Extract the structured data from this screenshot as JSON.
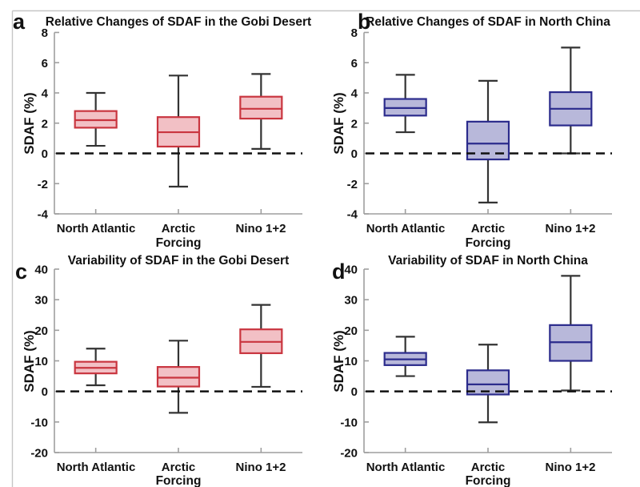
{
  "figure": {
    "background": "#ffffff"
  },
  "style": {
    "frame_color": "#c6c6c6",
    "axis_color": "#9e9e9e",
    "text_color": "#111111",
    "whisker_color": "#333333",
    "zero_line_color": "#111111",
    "red_edge": "#c9353f",
    "red_fill": "#f2c0c5",
    "blue_edge": "#2b2b8c",
    "blue_fill": "#b8b8da"
  },
  "chart_data": [
    {
      "type": "box",
      "panel_label": "a",
      "title": "Relative Changes of SDAF in the Gobi Desert",
      "xlabel": "Forcing",
      "ylabel": "SDAF (%)",
      "ylim": [
        -4,
        8
      ],
      "yticks": [
        8,
        6,
        4,
        2,
        0,
        -2,
        -4
      ],
      "grid": false,
      "legend": "none",
      "zero_line": {
        "y": 0,
        "style": "dashed",
        "color": "#111111"
      },
      "box_edge": "#c9353f",
      "box_fill": "#f2c0c5",
      "categories": [
        "North Atlantic",
        "Arctic",
        "Nino 1+2"
      ],
      "boxes": [
        {
          "category": "North Atlantic",
          "whisker_low": 0.5,
          "q1": 1.7,
          "median": 2.2,
          "q3": 2.8,
          "whisker_high": 4.0
        },
        {
          "category": "Arctic",
          "whisker_low": -2.2,
          "q1": 0.45,
          "median": 1.4,
          "q3": 2.4,
          "whisker_high": 5.15
        },
        {
          "category": "Nino 1+2",
          "whisker_low": 0.3,
          "q1": 2.3,
          "median": 2.95,
          "q3": 3.75,
          "whisker_high": 5.25
        }
      ]
    },
    {
      "type": "box",
      "panel_label": "b",
      "title": "Relative Changes of SDAF in North China",
      "xlabel": "Forcing",
      "ylabel": "SDAF (%)",
      "ylim": [
        -4,
        8
      ],
      "yticks": [
        8,
        6,
        4,
        2,
        0,
        -2,
        -4
      ],
      "grid": false,
      "legend": "none",
      "zero_line": {
        "y": 0,
        "style": "dashed",
        "color": "#111111"
      },
      "box_edge": "#2b2b8c",
      "box_fill": "#b8b8da",
      "categories": [
        "North Atlantic",
        "Arctic",
        "Nino 1+2"
      ],
      "boxes": [
        {
          "category": "North Atlantic",
          "whisker_low": 1.4,
          "q1": 2.5,
          "median": 3.0,
          "q3": 3.6,
          "whisker_high": 5.2
        },
        {
          "category": "Arctic",
          "whisker_low": -3.25,
          "q1": -0.4,
          "median": 0.65,
          "q3": 2.1,
          "whisker_high": 4.8
        },
        {
          "category": "Nino 1+2",
          "whisker_low": 0.0,
          "q1": 1.85,
          "median": 2.95,
          "q3": 4.05,
          "whisker_high": 7.0
        }
      ]
    },
    {
      "type": "box",
      "panel_label": "c",
      "title": "Variability of SDAF in the Gobi Desert",
      "xlabel": "Forcing",
      "ylabel": "SDAF (%)",
      "ylim": [
        -20,
        40
      ],
      "yticks": [
        40,
        30,
        20,
        10,
        0,
        -10,
        -20
      ],
      "grid": false,
      "legend": "none",
      "zero_line": {
        "y": 0,
        "style": "dashed",
        "color": "#111111"
      },
      "box_edge": "#c9353f",
      "box_fill": "#f2c0c5",
      "categories": [
        "North Atlantic",
        "Arctic",
        "Nino 1+2"
      ],
      "boxes": [
        {
          "category": "North Atlantic",
          "whisker_low": 2.0,
          "q1": 5.9,
          "median": 7.7,
          "q3": 9.7,
          "whisker_high": 14.0
        },
        {
          "category": "Arctic",
          "whisker_low": -7.0,
          "q1": 1.6,
          "median": 4.5,
          "q3": 8.0,
          "whisker_high": 16.6
        },
        {
          "category": "Nino 1+2",
          "whisker_low": 1.5,
          "q1": 12.5,
          "median": 16.2,
          "q3": 20.3,
          "whisker_high": 28.3
        }
      ]
    },
    {
      "type": "box",
      "panel_label": "d",
      "title": "Variability of SDAF in North China",
      "xlabel": "Forcing",
      "ylabel": "SDAF (%)",
      "ylim": [
        -20,
        40
      ],
      "yticks": [
        40,
        30,
        20,
        10,
        0,
        -10,
        -20
      ],
      "grid": false,
      "legend": "none",
      "zero_line": {
        "y": 0,
        "style": "dashed",
        "color": "#111111"
      },
      "box_edge": "#2b2b8c",
      "box_fill": "#b8b8da",
      "categories": [
        "North Atlantic",
        "Arctic",
        "Nino 1+2"
      ],
      "boxes": [
        {
          "category": "North Atlantic",
          "whisker_low": 5.0,
          "q1": 8.6,
          "median": 10.5,
          "q3": 12.6,
          "whisker_high": 17.9
        },
        {
          "category": "Arctic",
          "whisker_low": -10.1,
          "q1": -1.0,
          "median": 2.3,
          "q3": 6.9,
          "whisker_high": 15.3
        },
        {
          "category": "Nino 1+2",
          "whisker_low": 0.3,
          "q1": 10.0,
          "median": 16.1,
          "q3": 21.7,
          "whisker_high": 37.8
        }
      ]
    }
  ]
}
